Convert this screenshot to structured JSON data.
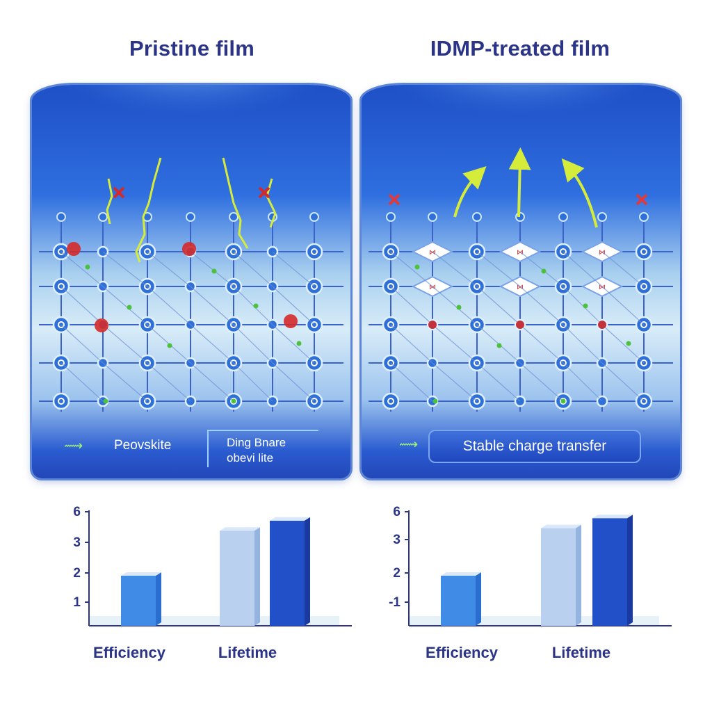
{
  "titles": {
    "left": "Pristine film",
    "right": "IDMP-treated film"
  },
  "left_panel": {
    "legend_label": "Peovskite",
    "defect_label_line1": "Ding Bnare",
    "defect_label_line2": "obevi lite"
  },
  "right_panel": {
    "legend_label": "Stable charge transfer"
  },
  "colors": {
    "title": "#2b3486",
    "panel_blue": "#2f6fe0",
    "node_blue": "#2e6fd8",
    "defect_red": "#d42a2a",
    "arrow_yellow_green": "#d6ec3a",
    "bar_light_blue": "#3f8be6",
    "bar_pale": "#b9d0ee",
    "bar_dark_blue": "#2250c8"
  },
  "chart_data": [
    {
      "type": "bar",
      "y_tick_labels": [
        "1",
        "2",
        "3",
        "6"
      ],
      "categories": [
        "Efficiency",
        "Lifetime"
      ],
      "series_values": [
        2.0,
        3.8,
        4.2
      ],
      "ylim": [
        0,
        5
      ]
    },
    {
      "type": "bar",
      "y_tick_labels": [
        "-1",
        "2",
        "3",
        "6"
      ],
      "categories": [
        "Efficiency",
        "Lifetime"
      ],
      "series_values": [
        2.0,
        3.9,
        4.3
      ],
      "ylim": [
        0,
        5
      ]
    }
  ]
}
